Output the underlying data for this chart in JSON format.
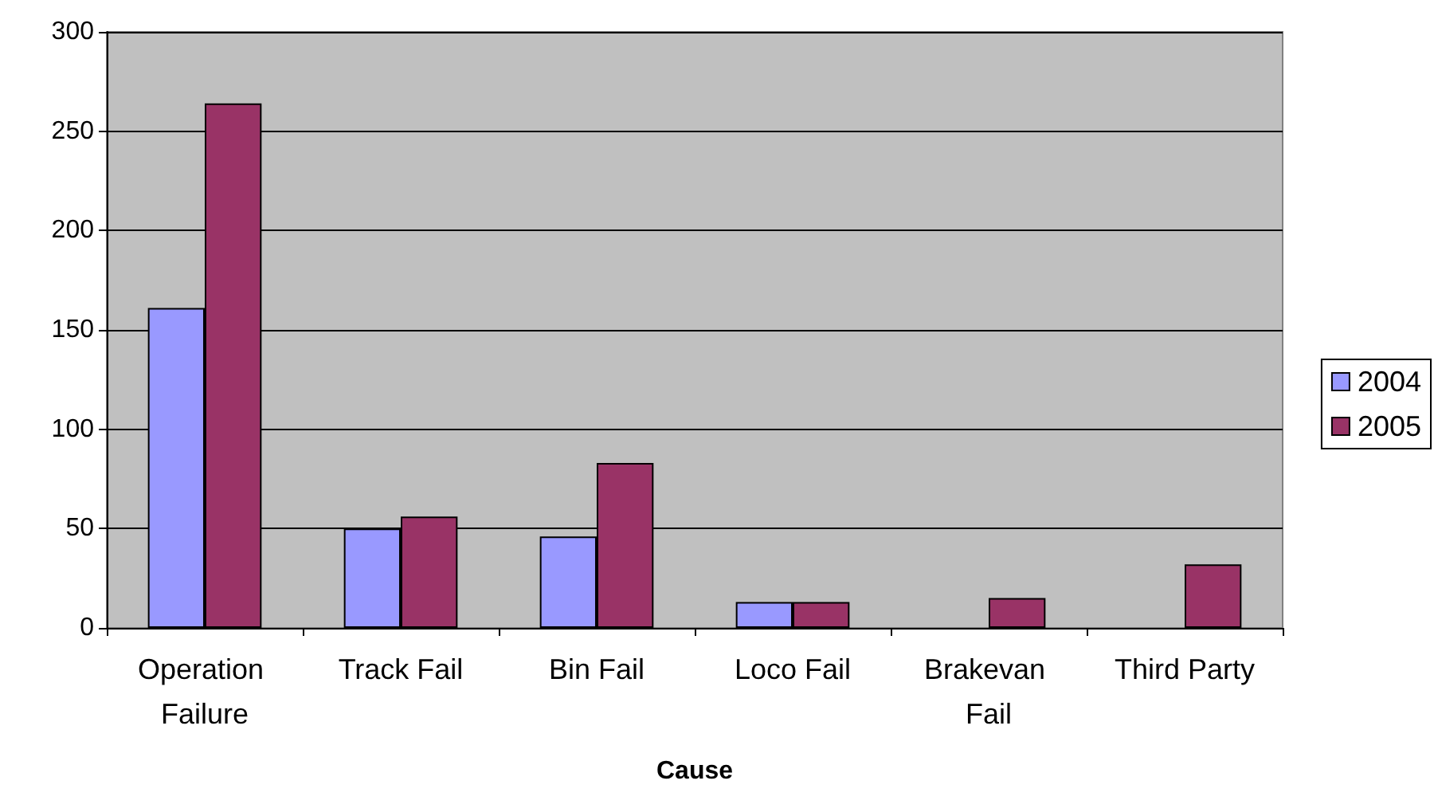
{
  "chart_data": {
    "type": "bar",
    "xlabel": "Cause",
    "categories": [
      "Operation Failure",
      "Track Fail",
      "Bin Fail",
      "Loco Fail",
      "Brakevan Fail",
      "Third Party"
    ],
    "series": [
      {
        "name": "2004",
        "color": "#9999ff",
        "values": [
          161,
          50,
          46,
          13,
          null,
          null
        ]
      },
      {
        "name": "2005",
        "color": "#993366",
        "values": [
          264,
          56,
          83,
          13,
          15,
          32
        ]
      }
    ],
    "ylim": [
      0,
      300
    ],
    "yticks": [
      0,
      50,
      100,
      150,
      200,
      250,
      300
    ],
    "grid": "y",
    "legend": "right"
  }
}
